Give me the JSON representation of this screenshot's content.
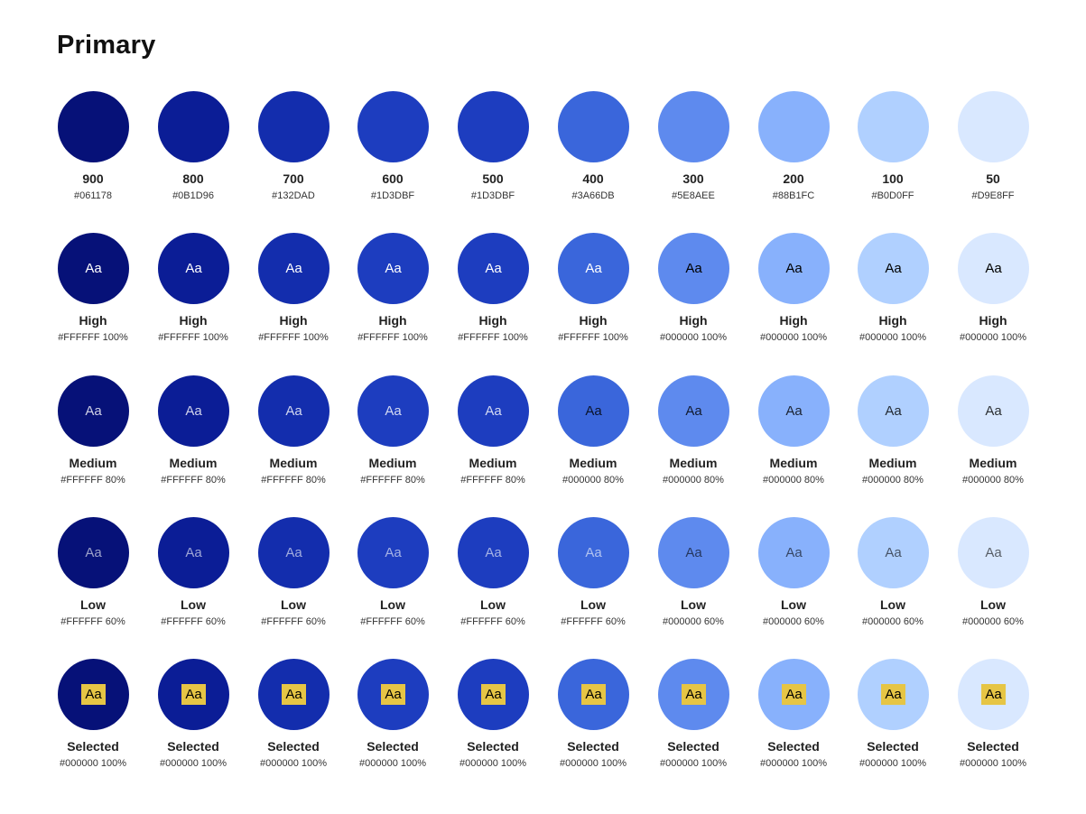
{
  "title": "Primary",
  "colors": {
    "selected_highlight": "#E6C545"
  },
  "rows": [
    {
      "type": "shade",
      "cells": [
        {
          "bg": "#061178",
          "label": "900",
          "sub": "#061178"
        },
        {
          "bg": "#0B1D96",
          "label": "800",
          "sub": "#0B1D96"
        },
        {
          "bg": "#132DAD",
          "label": "700",
          "sub": "#132DAD"
        },
        {
          "bg": "#1D3DBF",
          "label": "600",
          "sub": "#1D3DBF"
        },
        {
          "bg": "#1D3DBF",
          "label": "500",
          "sub": "#1D3DBF"
        },
        {
          "bg": "#3A66DB",
          "label": "400",
          "sub": "#3A66DB"
        },
        {
          "bg": "#5E8AEE",
          "label": "300",
          "sub": "#5E8AEE"
        },
        {
          "bg": "#88B1FC",
          "label": "200",
          "sub": "#88B1FC"
        },
        {
          "bg": "#B0D0FF",
          "label": "100",
          "sub": "#B0D0FF"
        },
        {
          "bg": "#D9E8FF",
          "label": "50",
          "sub": "#D9E8FF"
        }
      ]
    },
    {
      "type": "text",
      "cells": [
        {
          "bg": "#061178",
          "text": "Aa",
          "color": "#FFFFFF",
          "opacity": 1.0,
          "label": "High",
          "sub": "#FFFFFF 100%"
        },
        {
          "bg": "#0B1D96",
          "text": "Aa",
          "color": "#FFFFFF",
          "opacity": 1.0,
          "label": "High",
          "sub": "#FFFFFF 100%"
        },
        {
          "bg": "#132DAD",
          "text": "Aa",
          "color": "#FFFFFF",
          "opacity": 1.0,
          "label": "High",
          "sub": "#FFFFFF 100%"
        },
        {
          "bg": "#1D3DBF",
          "text": "Aa",
          "color": "#FFFFFF",
          "opacity": 1.0,
          "label": "High",
          "sub": "#FFFFFF 100%"
        },
        {
          "bg": "#1D3DBF",
          "text": "Aa",
          "color": "#FFFFFF",
          "opacity": 1.0,
          "label": "High",
          "sub": "#FFFFFF 100%"
        },
        {
          "bg": "#3A66DB",
          "text": "Aa",
          "color": "#FFFFFF",
          "opacity": 1.0,
          "label": "High",
          "sub": "#FFFFFF 100%"
        },
        {
          "bg": "#5E8AEE",
          "text": "Aa",
          "color": "#000000",
          "opacity": 1.0,
          "label": "High",
          "sub": "#000000 100%"
        },
        {
          "bg": "#88B1FC",
          "text": "Aa",
          "color": "#000000",
          "opacity": 1.0,
          "label": "High",
          "sub": "#000000 100%"
        },
        {
          "bg": "#B0D0FF",
          "text": "Aa",
          "color": "#000000",
          "opacity": 1.0,
          "label": "High",
          "sub": "#000000 100%"
        },
        {
          "bg": "#D9E8FF",
          "text": "Aa",
          "color": "#000000",
          "opacity": 1.0,
          "label": "High",
          "sub": "#000000 100%"
        }
      ]
    },
    {
      "type": "text",
      "cells": [
        {
          "bg": "#061178",
          "text": "Aa",
          "color": "#FFFFFF",
          "opacity": 0.8,
          "label": "Medium",
          "sub": "#FFFFFF 80%"
        },
        {
          "bg": "#0B1D96",
          "text": "Aa",
          "color": "#FFFFFF",
          "opacity": 0.8,
          "label": "Medium",
          "sub": "#FFFFFF 80%"
        },
        {
          "bg": "#132DAD",
          "text": "Aa",
          "color": "#FFFFFF",
          "opacity": 0.8,
          "label": "Medium",
          "sub": "#FFFFFF 80%"
        },
        {
          "bg": "#1D3DBF",
          "text": "Aa",
          "color": "#FFFFFF",
          "opacity": 0.8,
          "label": "Medium",
          "sub": "#FFFFFF 80%"
        },
        {
          "bg": "#1D3DBF",
          "text": "Aa",
          "color": "#FFFFFF",
          "opacity": 0.8,
          "label": "Medium",
          "sub": "#FFFFFF 80%"
        },
        {
          "bg": "#3A66DB",
          "text": "Aa",
          "color": "#000000",
          "opacity": 0.8,
          "label": "Medium",
          "sub": "#000000 80%"
        },
        {
          "bg": "#5E8AEE",
          "text": "Aa",
          "color": "#000000",
          "opacity": 0.8,
          "label": "Medium",
          "sub": "#000000 80%"
        },
        {
          "bg": "#88B1FC",
          "text": "Aa",
          "color": "#000000",
          "opacity": 0.8,
          "label": "Medium",
          "sub": "#000000 80%"
        },
        {
          "bg": "#B0D0FF",
          "text": "Aa",
          "color": "#000000",
          "opacity": 0.8,
          "label": "Medium",
          "sub": "#000000 80%"
        },
        {
          "bg": "#D9E8FF",
          "text": "Aa",
          "color": "#000000",
          "opacity": 0.8,
          "label": "Medium",
          "sub": "#000000 80%"
        }
      ]
    },
    {
      "type": "text",
      "cells": [
        {
          "bg": "#061178",
          "text": "Aa",
          "color": "#FFFFFF",
          "opacity": 0.6,
          "label": "Low",
          "sub": "#FFFFFF 60%"
        },
        {
          "bg": "#0B1D96",
          "text": "Aa",
          "color": "#FFFFFF",
          "opacity": 0.6,
          "label": "Low",
          "sub": "#FFFFFF 60%"
        },
        {
          "bg": "#132DAD",
          "text": "Aa",
          "color": "#FFFFFF",
          "opacity": 0.6,
          "label": "Low",
          "sub": "#FFFFFF 60%"
        },
        {
          "bg": "#1D3DBF",
          "text": "Aa",
          "color": "#FFFFFF",
          "opacity": 0.6,
          "label": "Low",
          "sub": "#FFFFFF 60%"
        },
        {
          "bg": "#1D3DBF",
          "text": "Aa",
          "color": "#FFFFFF",
          "opacity": 0.6,
          "label": "Low",
          "sub": "#FFFFFF 60%"
        },
        {
          "bg": "#3A66DB",
          "text": "Aa",
          "color": "#FFFFFF",
          "opacity": 0.6,
          "label": "Low",
          "sub": "#FFFFFF 60%"
        },
        {
          "bg": "#5E8AEE",
          "text": "Aa",
          "color": "#000000",
          "opacity": 0.6,
          "label": "Low",
          "sub": "#000000 60%"
        },
        {
          "bg": "#88B1FC",
          "text": "Aa",
          "color": "#000000",
          "opacity": 0.6,
          "label": "Low",
          "sub": "#000000 60%"
        },
        {
          "bg": "#B0D0FF",
          "text": "Aa",
          "color": "#000000",
          "opacity": 0.6,
          "label": "Low",
          "sub": "#000000 60%"
        },
        {
          "bg": "#D9E8FF",
          "text": "Aa",
          "color": "#000000",
          "opacity": 0.6,
          "label": "Low",
          "sub": "#000000 60%"
        }
      ]
    },
    {
      "type": "selected",
      "cells": [
        {
          "bg": "#061178",
          "text": "Aa",
          "color": "#000000",
          "opacity": 1.0,
          "label": "Selected",
          "sub": "#000000 100%"
        },
        {
          "bg": "#0B1D96",
          "text": "Aa",
          "color": "#000000",
          "opacity": 1.0,
          "label": "Selected",
          "sub": "#000000 100%"
        },
        {
          "bg": "#132DAD",
          "text": "Aa",
          "color": "#000000",
          "opacity": 1.0,
          "label": "Selected",
          "sub": "#000000 100%"
        },
        {
          "bg": "#1D3DBF",
          "text": "Aa",
          "color": "#000000",
          "opacity": 1.0,
          "label": "Selected",
          "sub": "#000000 100%"
        },
        {
          "bg": "#1D3DBF",
          "text": "Aa",
          "color": "#000000",
          "opacity": 1.0,
          "label": "Selected",
          "sub": "#000000 100%"
        },
        {
          "bg": "#3A66DB",
          "text": "Aa",
          "color": "#000000",
          "opacity": 1.0,
          "label": "Selected",
          "sub": "#000000 100%"
        },
        {
          "bg": "#5E8AEE",
          "text": "Aa",
          "color": "#000000",
          "opacity": 1.0,
          "label": "Selected",
          "sub": "#000000 100%"
        },
        {
          "bg": "#88B1FC",
          "text": "Aa",
          "color": "#000000",
          "opacity": 1.0,
          "label": "Selected",
          "sub": "#000000 100%"
        },
        {
          "bg": "#B0D0FF",
          "text": "Aa",
          "color": "#000000",
          "opacity": 1.0,
          "label": "Selected",
          "sub": "#000000 100%"
        },
        {
          "bg": "#D9E8FF",
          "text": "Aa",
          "color": "#000000",
          "opacity": 1.0,
          "label": "Selected",
          "sub": "#000000 100%"
        }
      ]
    }
  ]
}
